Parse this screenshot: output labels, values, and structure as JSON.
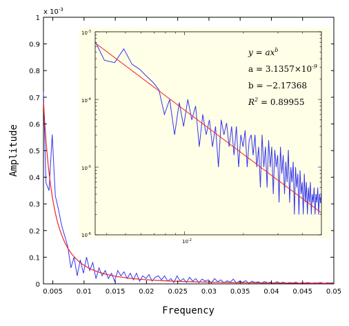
{
  "chart_data": [
    {
      "type": "line",
      "xlabel": "Frequency",
      "ylabel": "Amplitude",
      "xlim": [
        0.0035,
        0.05
      ],
      "ylim": [
        0,
        1
      ],
      "y_exponent_label": "x 10",
      "y_exponent_power": "-3",
      "x_ticks": [
        "0.005",
        "0.01",
        "0.015",
        "0.02",
        "0.025",
        "0.03",
        "0.035",
        "0.04",
        "0.045",
        "0.05"
      ],
      "y_ticks": [
        "0",
        "0.1",
        "0.2",
        "0.3",
        "0.4",
        "0.5",
        "0.6",
        "0.7",
        "0.8",
        "0.9",
        "1"
      ],
      "series": [
        {
          "color": "#3333ee",
          "x": [
            0.0035,
            0.0039,
            0.0044,
            0.0049,
            0.0054,
            0.0059,
            0.0064,
            0.0069,
            0.0074,
            0.0079,
            0.0084,
            0.0089,
            0.0094,
            0.0099,
            0.0104,
            0.0109,
            0.0114,
            0.0119,
            0.0124,
            0.0129,
            0.0134,
            0.0139,
            0.0144,
            0.0149,
            0.0154,
            0.0159,
            0.0164,
            0.0169,
            0.0174,
            0.0179,
            0.0184,
            0.0189,
            0.0194,
            0.0199,
            0.0204,
            0.0209,
            0.0214,
            0.0219,
            0.0224,
            0.0229,
            0.0234,
            0.0239,
            0.0244,
            0.0249,
            0.0254,
            0.0259,
            0.0264,
            0.0269,
            0.0274,
            0.0279,
            0.0284,
            0.0289,
            0.0294,
            0.0299,
            0.0304,
            0.0309,
            0.0314,
            0.0319,
            0.0324,
            0.0329,
            0.0334,
            0.0339,
            0.0344,
            0.0349,
            0.0354,
            0.0359,
            0.0364,
            0.0369,
            0.0374,
            0.0379,
            0.0384,
            0.0389,
            0.0394,
            0.0399,
            0.0404,
            0.0409,
            0.0414,
            0.0419,
            0.0424,
            0.0429,
            0.0434,
            0.0439,
            0.0444,
            0.0449,
            0.0454,
            0.0459,
            0.0464,
            0.0469,
            0.0474,
            0.0479,
            0.0484,
            0.0489,
            0.0494,
            0.0499
          ],
          "values": [
            0.72,
            0.38,
            0.35,
            0.56,
            0.33,
            0.28,
            0.22,
            0.18,
            0.14,
            0.06,
            0.1,
            0.03,
            0.09,
            0.04,
            0.1,
            0.05,
            0.08,
            0.02,
            0.06,
            0.03,
            0.05,
            0.02,
            0.04,
            0.01,
            0.05,
            0.03,
            0.045,
            0.02,
            0.04,
            0.015,
            0.04,
            0.01,
            0.03,
            0.02,
            0.035,
            0.01,
            0.025,
            0.03,
            0.015,
            0.03,
            0.01,
            0.02,
            0.005,
            0.03,
            0.01,
            0.02,
            0.005,
            0.025,
            0.01,
            0.02,
            0.004,
            0.018,
            0.01,
            0.015,
            0.003,
            0.02,
            0.008,
            0.015,
            0.004,
            0.012,
            0.006,
            0.018,
            0.003,
            0.01,
            0.006,
            0.012,
            0.002,
            0.01,
            0.005,
            0.008,
            0.002,
            0.009,
            0.004,
            0.006,
            0.002,
            0.008,
            0.003,
            0.006,
            0.002,
            0.005,
            0.003,
            0.006,
            0.002,
            0.004,
            0.003,
            0.005,
            0.002,
            0.004,
            0.003,
            0.005,
            0.002,
            0.004,
            0.003,
            0.004
          ]
        },
        {
          "color": "#ee2222",
          "fit": "power",
          "a": 3.1357e-09,
          "b": -2.17368
        }
      ]
    },
    {
      "type": "line",
      "inset": true,
      "x_scale": "log",
      "y_scale": "log",
      "xlim": [
        0.0035,
        0.05
      ],
      "ylim": [
        1e-06,
        0.001
      ],
      "x_tick_label": "10",
      "x_tick_power": "-2",
      "y_tick_labels": [
        {
          "base": "10",
          "power": "-3"
        },
        {
          "base": "10",
          "power": "-4"
        },
        {
          "base": "10",
          "power": "-5"
        },
        {
          "base": "10",
          "power": "-6"
        }
      ],
      "equation": {
        "line1": "y = ax",
        "line1_exp": "b",
        "line2": "a = 3.1357×10",
        "line2_exp": "-9",
        "line3": "b = −2.17368",
        "line4_prefix": "R",
        "line4_exp": "2",
        "line4_value": " = 0.89955"
      }
    }
  ]
}
